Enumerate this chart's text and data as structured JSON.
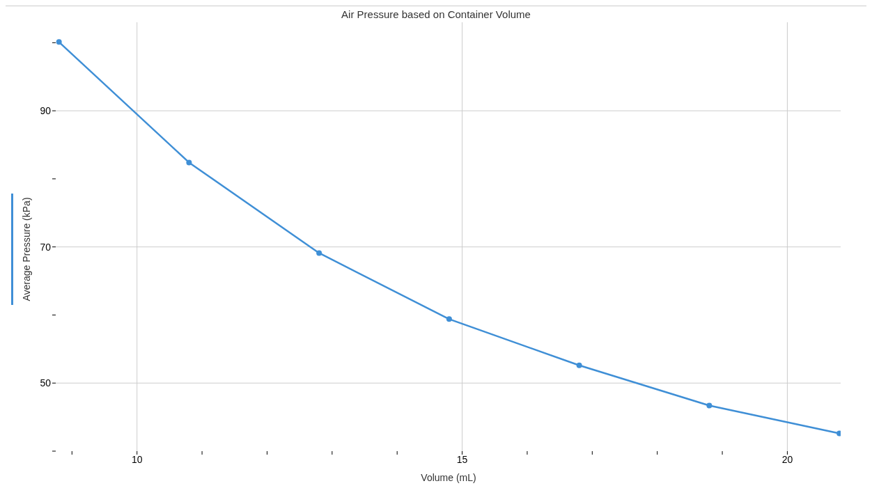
{
  "chart_data": {
    "type": "line",
    "title": "Air Pressure based on Container Volume",
    "xlabel": "Volume (mL)",
    "ylabel": "Average Pressure (kPa)",
    "x": [
      8.8,
      10.8,
      12.8,
      14.8,
      16.8,
      18.8,
      20.8
    ],
    "series": [
      {
        "color": "#3f8fd6",
        "values": [
          100.1,
          82.4,
          69.1,
          59.4,
          52.6,
          46.7,
          42.6
        ]
      }
    ],
    "xlim": [
      8.75,
      20.82
    ],
    "ylim": [
      40,
      103
    ],
    "xticks": [
      {
        "value": 9,
        "label": null
      },
      10,
      {
        "value": 11,
        "label": null
      },
      {
        "value": 12,
        "label": null
      },
      {
        "value": 13,
        "label": null
      },
      {
        "value": 14,
        "label": null
      },
      15,
      {
        "value": 16,
        "label": null
      },
      {
        "value": 17,
        "label": null
      },
      {
        "value": 18,
        "label": null
      },
      {
        "value": 19,
        "label": null
      },
      20
    ],
    "yticks": [
      {
        "value": 40,
        "label": null
      },
      50,
      {
        "value": 60,
        "label": null
      },
      70,
      {
        "value": 80,
        "label": null
      },
      90,
      {
        "value": 100,
        "label": null
      }
    ],
    "grid": true,
    "marker": "circle",
    "line_style": "solid"
  }
}
